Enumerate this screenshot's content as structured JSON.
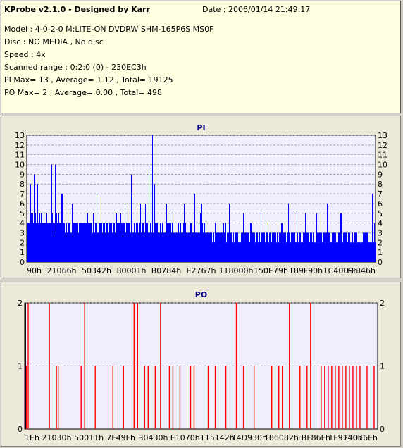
{
  "header": {
    "title": "KProbe v2.1.0 - Designed by Karr",
    "date": "Date : 2006/01/14 21:49:17",
    "lines": [
      "Model : 4-0-2-0 M:LITE-ON DVDRW SHM-165P6S MS0F",
      "Disc : NO MEDIA , No disc",
      "Speed : 4x",
      "Scanned range : 0:2:0 (0) - 230EC3h",
      "PI Max= 13 , Average= 1.12 , Total= 19125",
      "PO Max= 2 , Average= 0.00 , Total= 498"
    ]
  },
  "colors": {
    "pi": "#0000ff",
    "po": "#ff0000",
    "plot_bg": "#eeeefc",
    "title": "#000080"
  },
  "chart_data": [
    {
      "type": "bar",
      "title": "PI",
      "ylim": [
        0,
        13
      ],
      "yticks": [
        0,
        1,
        2,
        3,
        4,
        5,
        6,
        7,
        8,
        9,
        10,
        11,
        12,
        13
      ],
      "xticks": [
        "90h",
        "21066h",
        "50342h",
        "80001h",
        "B0784h",
        "E2767h",
        "118000h",
        "150E79h",
        "189F90h",
        "1C4009h",
        "1FF346h"
      ],
      "grid": true,
      "profile": {
        "x_range": [
          0,
          1
        ],
        "max": 13,
        "average": 1.12,
        "baseline_levels": [
          [
            0.0,
            4.5
          ],
          [
            0.1,
            4
          ],
          [
            0.3,
            4
          ],
          [
            0.45,
            3.5
          ],
          [
            0.6,
            3
          ],
          [
            0.75,
            3
          ],
          [
            1.0,
            2.5
          ]
        ],
        "spikes": [
          [
            0.01,
            8
          ],
          [
            0.02,
            9
          ],
          [
            0.03,
            7
          ],
          [
            0.07,
            8
          ],
          [
            0.08,
            10
          ],
          [
            0.1,
            7
          ],
          [
            0.13,
            6
          ],
          [
            0.2,
            7
          ],
          [
            0.28,
            6
          ],
          [
            0.3,
            7
          ],
          [
            0.34,
            6
          ],
          [
            0.35,
            9
          ],
          [
            0.355,
            10
          ],
          [
            0.36,
            13
          ],
          [
            0.365,
            8
          ],
          [
            0.4,
            6
          ],
          [
            0.45,
            6
          ],
          [
            0.48,
            7
          ],
          [
            0.5,
            6
          ],
          [
            0.58,
            6
          ],
          [
            0.62,
            5
          ],
          [
            0.67,
            5
          ],
          [
            0.75,
            6
          ],
          [
            0.83,
            5
          ],
          [
            0.86,
            6
          ],
          [
            0.9,
            5
          ],
          [
            0.99,
            7
          ]
        ]
      }
    },
    {
      "type": "bar",
      "title": "PO",
      "ylim": [
        0,
        2
      ],
      "yticks": [
        0,
        1,
        2
      ],
      "xticks": [
        "1Eh",
        "21030h",
        "50011h",
        "7F49Fh",
        "B0430h",
        "E1070h",
        "115142h",
        "14D930h",
        "186082h",
        "1BF86Fh",
        "1F9140h",
        "23076Eh"
      ],
      "grid": true,
      "events_2": [
        0.01,
        0.07,
        0.17,
        0.31,
        0.32,
        0.385,
        0.6,
        0.75,
        0.81
      ],
      "events_1": [
        0.005,
        0.09,
        0.095,
        0.16,
        0.2,
        0.25,
        0.28,
        0.34,
        0.35,
        0.37,
        0.41,
        0.42,
        0.44,
        0.47,
        0.48,
        0.52,
        0.54,
        0.57,
        0.62,
        0.65,
        0.7,
        0.72,
        0.73,
        0.78,
        0.8,
        0.84,
        0.85,
        0.86,
        0.87,
        0.88,
        0.89,
        0.9,
        0.91,
        0.92,
        0.93,
        0.94,
        0.95,
        0.97,
        0.99
      ]
    }
  ]
}
